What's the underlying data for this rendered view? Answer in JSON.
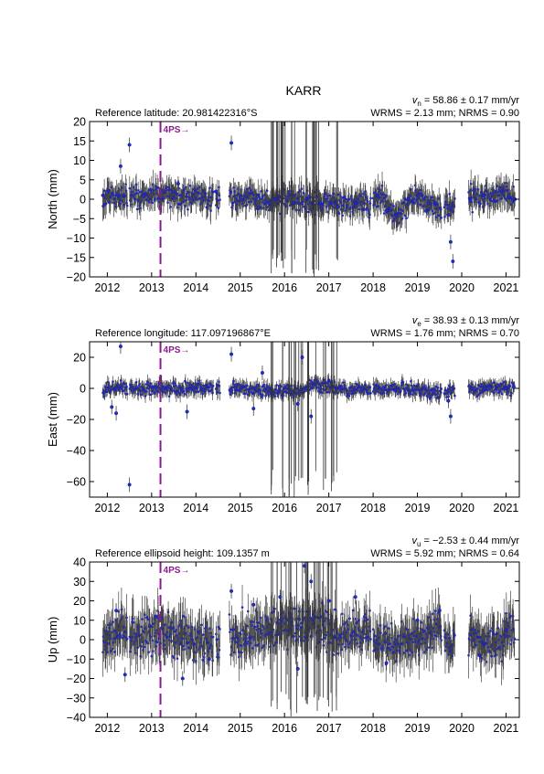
{
  "title": "KARR",
  "colors": {
    "point": "#1f2bd6",
    "errorbar": "#444444",
    "event": "#8b1a8b"
  },
  "chart_data": [
    {
      "type": "scatter",
      "component": "north",
      "ylabel": "North (mm)",
      "ref_label": "Reference latitude: 20.981422316°S",
      "velocity_prefix": "v",
      "velocity_sub": "n",
      "velocity_rest": " = 58.86 ± 0.17 mm/yr",
      "stats": "WRMS = 2.13 mm; NRMS = 0.90",
      "xlim": [
        2011.6,
        2021.3
      ],
      "ylim": [
        -20,
        20
      ],
      "yticks": [
        -20,
        -15,
        -10,
        -5,
        0,
        5,
        10,
        15,
        20
      ],
      "xticks": [
        2012,
        2013,
        2014,
        2015,
        2016,
        2017,
        2018,
        2019,
        2020,
        2021
      ],
      "event": {
        "label": "4PS→",
        "year": 2013.2
      },
      "data_gaps": [
        [
          2012.45,
          2012.5
        ],
        [
          2014.4,
          2014.45
        ],
        [
          2014.55,
          2014.75
        ],
        [
          2017.95,
          2018.0
        ],
        [
          2019.55,
          2019.6
        ],
        [
          2019.85,
          2020.15
        ]
      ],
      "series": [
        {
          "name": "",
          "x": [
            2011.9,
            2012.3,
            2012.5,
            2013.6,
            2014.45,
            2014.8,
            2015.4,
            2015.8,
            2016.2,
            2016.5,
            2016.8,
            2017.2,
            2017.6,
            2018.1,
            2018.3,
            2018.5,
            2018.8,
            2019.0,
            2019.2,
            2019.4,
            2019.7,
            2019.75,
            2019.8,
            2020.2,
            2020.5,
            2020.9,
            2021.2
          ],
          "y": [
            1,
            8.5,
            14,
            4,
            2,
            14.5,
            1,
            0,
            -1,
            0,
            -1,
            -2,
            -1,
            1,
            -3,
            -4,
            0,
            1,
            -3,
            -1,
            -4,
            -11,
            -16,
            0,
            1,
            2,
            0
          ]
        }
      ],
      "band": {
        "x": [
          2011.9,
          2012.4,
          2012.55,
          2013.0,
          2013.5,
          2014.0,
          2014.4,
          2014.75,
          2015.2,
          2015.7,
          2016.2,
          2016.6,
          2017.0,
          2017.5,
          2017.95,
          2018.1,
          2018.4,
          2018.55,
          2018.8,
          2019.0,
          2019.3,
          2019.55,
          2019.7,
          2019.85,
          2020.15,
          2020.5,
          2020.8,
          2021.0,
          2021.2
        ],
        "y": [
          0.5,
          1,
          0.5,
          1,
          1,
          0.5,
          0.5,
          1,
          0,
          -0.5,
          0,
          -0.5,
          -1,
          -1.5,
          -1,
          1,
          -2.5,
          -4,
          -1,
          0.5,
          -2,
          -3,
          -1,
          -2,
          0.5,
          0.5,
          1.5,
          2,
          0.5
        ],
        "spread": 3
      }
    },
    {
      "type": "scatter",
      "component": "east",
      "ylabel": "East (mm)",
      "ref_label": "Reference longitude: 117.097196867°E",
      "velocity_prefix": "v",
      "velocity_sub": "e",
      "velocity_rest": " = 38.93 ± 0.13 mm/yr",
      "stats": "WRMS = 1.76 mm; NRMS = 0.70",
      "xlim": [
        2011.6,
        2021.3
      ],
      "ylim": [
        -70,
        30
      ],
      "yticks": [
        -60,
        -40,
        -20,
        0,
        20
      ],
      "xticks": [
        2012,
        2013,
        2014,
        2015,
        2016,
        2017,
        2018,
        2019,
        2020,
        2021
      ],
      "event": {
        "label": "4PS→",
        "year": 2013.2
      },
      "data_gaps": [
        [
          2012.45,
          2012.5
        ],
        [
          2014.4,
          2014.45
        ],
        [
          2014.55,
          2014.75
        ],
        [
          2017.95,
          2018.0
        ],
        [
          2019.55,
          2019.6
        ],
        [
          2019.85,
          2020.15
        ]
      ],
      "series": [
        {
          "name": "",
          "x": [
            2012.1,
            2012.2,
            2012.3,
            2012.5,
            2013.8,
            2014.8,
            2015.3,
            2015.5,
            2016.3,
            2016.4,
            2016.6,
            2017.0,
            2018.5,
            2019.7,
            2019.75,
            2020.5,
            2021.0
          ],
          "y": [
            -12,
            -16,
            27,
            -62,
            -15,
            22,
            -13,
            10,
            -10,
            20,
            -18,
            5,
            -1,
            -8,
            -18,
            -1,
            0
          ]
        }
      ],
      "band": {
        "x": [
          2011.9,
          2012.4,
          2012.55,
          2013.0,
          2013.5,
          2014.0,
          2014.4,
          2014.75,
          2015.3,
          2015.8,
          2016.3,
          2016.7,
          2017.2,
          2017.9,
          2018.1,
          2018.6,
          2019.0,
          2019.4,
          2019.7,
          2019.8,
          2020.15,
          2020.6,
          2021.2
        ],
        "y": [
          0,
          1,
          0,
          0,
          0,
          0.5,
          0,
          1,
          -1,
          -2,
          -1,
          2,
          0,
          -1,
          -1,
          0,
          -1,
          -2,
          -3,
          -1,
          0,
          0,
          0
        ],
        "spread": 4
      }
    },
    {
      "type": "scatter",
      "component": "up",
      "ylabel": "Up (mm)",
      "ref_label": "Reference ellipsoid height: 109.1357 m",
      "velocity_prefix": "v",
      "velocity_sub": "u",
      "velocity_rest": " = −2.53 ± 0.44 mm/yr",
      "stats": "WRMS = 5.92 mm; NRMS = 0.64",
      "xlim": [
        2011.6,
        2021.3
      ],
      "ylim": [
        -40,
        40
      ],
      "yticks": [
        -40,
        -30,
        -20,
        -10,
        0,
        10,
        20,
        30,
        40
      ],
      "xticks": [
        2012,
        2013,
        2014,
        2015,
        2016,
        2017,
        2018,
        2019,
        2020,
        2021
      ],
      "event": {
        "label": "4PS→",
        "year": 2013.2
      },
      "data_gaps": [
        [
          2012.45,
          2012.5
        ],
        [
          2014.4,
          2014.45
        ],
        [
          2014.55,
          2014.75
        ],
        [
          2017.95,
          2018.0
        ],
        [
          2019.55,
          2019.6
        ],
        [
          2019.85,
          2020.15
        ]
      ],
      "series": [
        {
          "name": "",
          "x": [
            2012.2,
            2012.4,
            2013.1,
            2013.7,
            2014.3,
            2014.8,
            2015.3,
            2015.9,
            2016.3,
            2016.45,
            2016.6,
            2017.0,
            2017.6,
            2018.3,
            2019.0,
            2019.5,
            2020.4,
            2021.0
          ],
          "y": [
            15,
            -18,
            12,
            -20,
            -10,
            25,
            18,
            22,
            -15,
            38,
            30,
            20,
            22,
            -12,
            10,
            15,
            -8,
            5
          ]
        }
      ],
      "band": {
        "x": [
          2011.9,
          2012.4,
          2012.55,
          2013.0,
          2013.5,
          2014.0,
          2014.4,
          2014.75,
          2015.3,
          2015.8,
          2016.3,
          2016.8,
          2017.3,
          2017.8,
          2017.95,
          2018.1,
          2018.6,
          2019.0,
          2019.5,
          2019.6,
          2020.15,
          2020.6,
          2021.2
        ],
        "y": [
          0,
          5,
          0,
          3,
          2,
          0,
          -2,
          2,
          5,
          6,
          8,
          6,
          4,
          6,
          5,
          -3,
          -2,
          0,
          6,
          -2,
          0,
          -1,
          3
        ],
        "spread": 10
      }
    }
  ]
}
